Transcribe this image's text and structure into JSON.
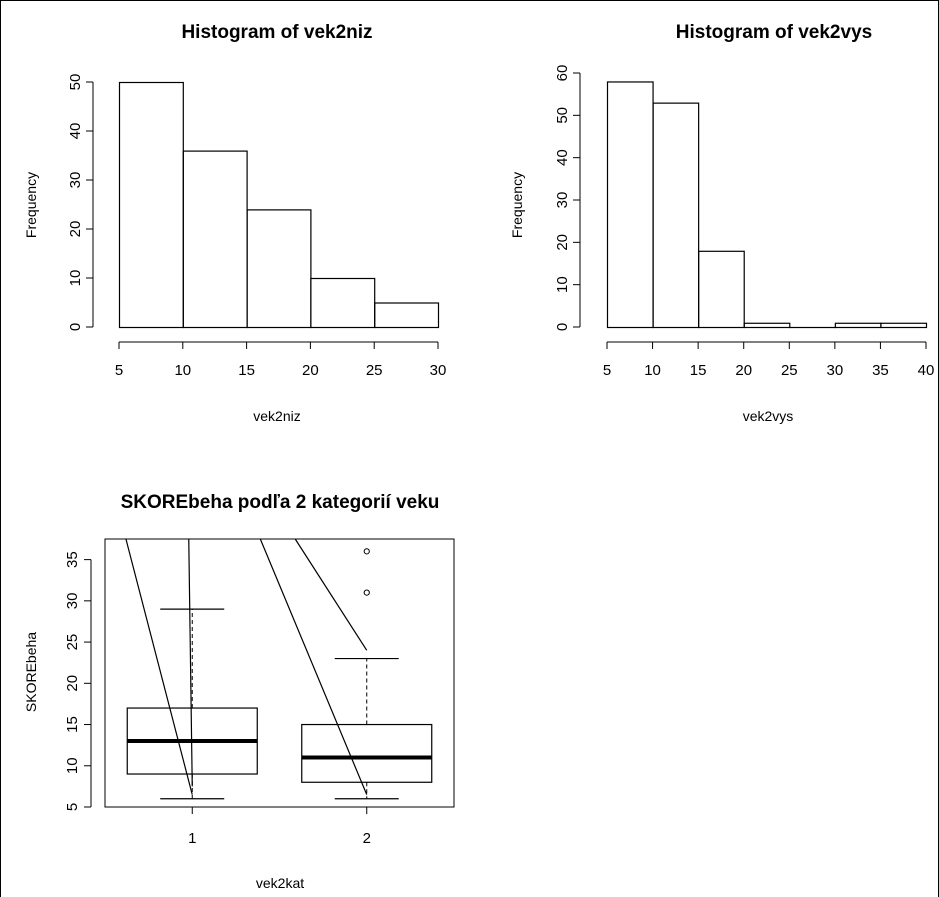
{
  "chart_data": [
    {
      "type": "bar",
      "subtype": "histogram",
      "title": "Histogram of vek2niz",
      "xlabel": "vek2niz",
      "ylabel": "Frequency",
      "bins": [
        [
          5,
          10
        ],
        [
          10,
          15
        ],
        [
          15,
          20
        ],
        [
          20,
          25
        ],
        [
          25,
          30
        ]
      ],
      "values": [
        50,
        36,
        24,
        10,
        5
      ],
      "xticks": [
        "5",
        "10",
        "15",
        "20",
        "25",
        "30"
      ],
      "yticks": [
        "0",
        "10",
        "20",
        "30",
        "40",
        "50"
      ],
      "xlim": [
        5,
        30
      ],
      "ylim": [
        0,
        50
      ],
      "grid": false
    },
    {
      "type": "bar",
      "subtype": "histogram",
      "title": "Histogram of vek2vys",
      "xlabel": "vek2vys",
      "ylabel": "Frequency",
      "bins": [
        [
          5,
          10
        ],
        [
          10,
          15
        ],
        [
          15,
          20
        ],
        [
          20,
          25
        ],
        [
          25,
          30
        ],
        [
          30,
          35
        ],
        [
          35,
          40
        ]
      ],
      "values": [
        58,
        53,
        18,
        1,
        0,
        1,
        1
      ],
      "xticks": [
        "5",
        "10",
        "15",
        "20",
        "25",
        "30",
        "35",
        "40"
      ],
      "yticks": [
        "0",
        "10",
        "20",
        "30",
        "40",
        "50",
        "60"
      ],
      "xlim": [
        5,
        40
      ],
      "ylim": [
        0,
        60
      ],
      "grid": false
    },
    {
      "type": "boxplot",
      "title": "SKOREbeha podľa 2 kategorií veku",
      "xlabel": "vek2kat",
      "ylabel": "SKOREbeha",
      "categories": [
        "1",
        "2"
      ],
      "boxes": [
        {
          "name": "1",
          "whisker_low": 6,
          "q1": 9,
          "median": 13,
          "q3": 17,
          "whisker_high": 29,
          "outliers": []
        },
        {
          "name": "2",
          "whisker_low": 6,
          "q1": 8,
          "median": 11,
          "q3": 15,
          "whisker_high": 23,
          "outliers": [
            31,
            36
          ]
        }
      ],
      "notch_lines": [
        {
          "from": [
            0.62,
            37.5
          ],
          "to": [
            1.0,
            6.5
          ]
        },
        {
          "from": [
            0.98,
            37.5
          ],
          "to": [
            1.0,
            7.5
          ]
        },
        {
          "from": [
            1.39,
            37.5
          ],
          "to": [
            2.0,
            6.5
          ]
        },
        {
          "from": [
            1.59,
            37.5
          ],
          "to": [
            2.0,
            24
          ]
        }
      ],
      "yticks": [
        "5",
        "10",
        "15",
        "20",
        "25",
        "30",
        "35"
      ],
      "ylim": [
        5,
        37.5
      ],
      "xlim": [
        0.5,
        2.5
      ],
      "grid": false
    }
  ]
}
